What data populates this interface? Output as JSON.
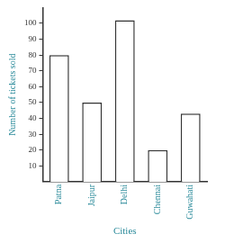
{
  "chart_data": {
    "type": "bar",
    "x_label": "Cities",
    "y_label": "Number of tickets sold",
    "categories": [
      "Patna",
      "Jaipur",
      "Delhi",
      "Chennai",
      "Guwahati"
    ],
    "values": [
      80,
      50,
      102,
      20,
      43
    ],
    "color": "#ffffff",
    "ylim": [
      0,
      110
    ],
    "yticks": [
      10,
      20,
      30,
      40,
      50,
      60,
      70,
      80,
      90,
      100
    ],
    "grid": false
  }
}
